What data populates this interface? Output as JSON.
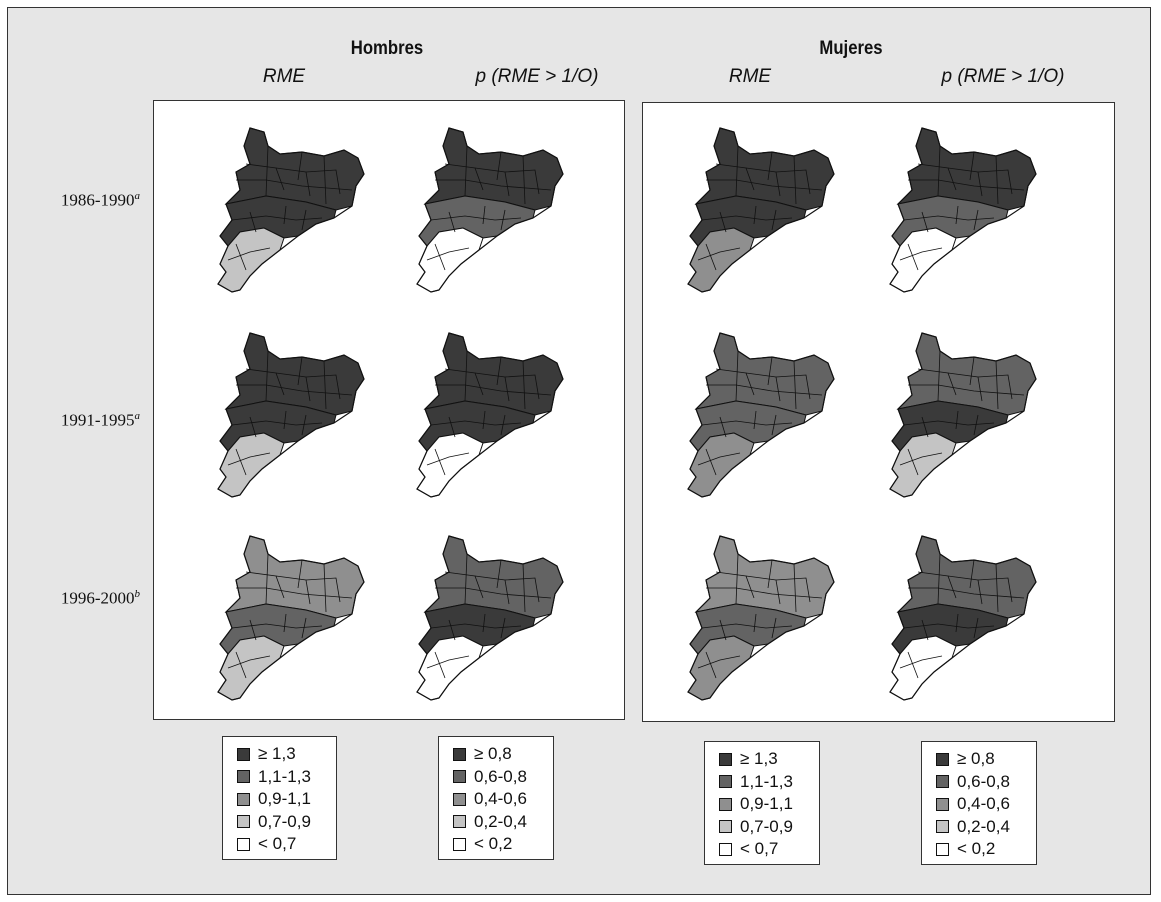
{
  "groups": [
    {
      "title": "Hombres",
      "col_rme": "RME",
      "col_p": "p (RME > 1/O)"
    },
    {
      "title": "Mujeres",
      "col_rme": "RME",
      "col_p": "p (RME > 1/O)"
    }
  ],
  "rows": [
    {
      "label": "1986-1990",
      "sup": "a"
    },
    {
      "label": "1991-1995",
      "sup": "a"
    },
    {
      "label": "1996-2000",
      "sup": "b"
    }
  ],
  "legends": {
    "rme": {
      "items": [
        {
          "label": "≥ 1,3",
          "color": "#3a3a3a"
        },
        {
          "label": "1,1-1,3",
          "color": "#636363"
        },
        {
          "label": "0,9-1,1",
          "color": "#8f8f8f"
        },
        {
          "label": "0,7-0,9",
          "color": "#c4c4c4"
        },
        {
          "label": "< 0,7",
          "color": "#ffffff"
        }
      ]
    },
    "p": {
      "items": [
        {
          "label": "≥ 0,8",
          "color": "#3a3a3a"
        },
        {
          "label": "0,6-0,8",
          "color": "#636363"
        },
        {
          "label": "0,4-0,6",
          "color": "#8f8f8f"
        },
        {
          "label": "0,2-0,4",
          "color": "#c4c4c4"
        },
        {
          "label": "< 0,2",
          "color": "#ffffff"
        }
      ]
    }
  },
  "maps": [
    {
      "sex": "Hombres",
      "measure": "RME",
      "period": "1986-1990",
      "north": 0,
      "center": 0,
      "south": 3
    },
    {
      "sex": "Hombres",
      "measure": "p",
      "period": "1986-1990",
      "north": 0,
      "center": 1,
      "south": 4
    },
    {
      "sex": "Mujeres",
      "measure": "RME",
      "period": "1986-1990",
      "north": 0,
      "center": 0,
      "south": 2
    },
    {
      "sex": "Mujeres",
      "measure": "p",
      "period": "1986-1990",
      "north": 0,
      "center": 1,
      "south": 4
    },
    {
      "sex": "Hombres",
      "measure": "RME",
      "period": "1991-1995",
      "north": 0,
      "center": 0,
      "south": 3
    },
    {
      "sex": "Hombres",
      "measure": "p",
      "period": "1991-1995",
      "north": 0,
      "center": 0,
      "south": 4
    },
    {
      "sex": "Mujeres",
      "measure": "RME",
      "period": "1991-1995",
      "north": 1,
      "center": 1,
      "south": 2
    },
    {
      "sex": "Mujeres",
      "measure": "p",
      "period": "1991-1995",
      "north": 1,
      "center": 0,
      "south": 3
    },
    {
      "sex": "Hombres",
      "measure": "RME",
      "period": "1996-2000",
      "north": 2,
      "center": 1,
      "south": 3
    },
    {
      "sex": "Hombres",
      "measure": "p",
      "period": "1996-2000",
      "north": 1,
      "center": 0,
      "south": 4
    },
    {
      "sex": "Mujeres",
      "measure": "RME",
      "period": "1996-2000",
      "north": 2,
      "center": 1,
      "south": 2
    },
    {
      "sex": "Mujeres",
      "measure": "p",
      "period": "1996-2000",
      "north": 1,
      "center": 0,
      "south": 4
    }
  ]
}
